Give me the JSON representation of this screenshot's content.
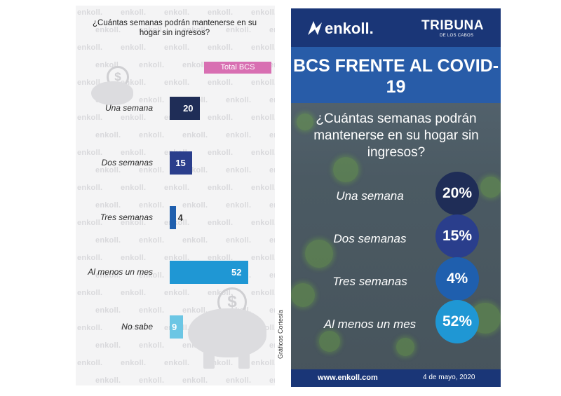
{
  "left": {
    "question": "¿Cuántas semanas podrán mantenerse en su hogar sin ingresos?",
    "badge": "Total BCS",
    "watermark": "enkoll.",
    "credit": "Gráficos Cortesía"
  },
  "right": {
    "brand": "enkoll.",
    "partner": "TRIBUNA",
    "partner_sub": "DE LOS CABOS",
    "title": "BCS FRENTE AL COVID-19",
    "question": "¿Cuántas semanas podrán mantenerse en su hogar sin ingresos?",
    "items": [
      {
        "label": "Una semana",
        "value": "20%",
        "color": "#1f2d57"
      },
      {
        "label": "Dos semanas",
        "value": "15%",
        "color": "#2a3e8c"
      },
      {
        "label": "Tres semanas",
        "value": "4%",
        "color": "#1f5fae"
      },
      {
        "label": "Al menos un mes",
        "value": "52%",
        "color": "#1f97d4"
      }
    ],
    "url": "www.enkoll.com",
    "date": "4 de mayo, 2020"
  },
  "chart_data": {
    "type": "bar",
    "orientation": "horizontal",
    "title": "¿Cuántas semanas podrán mantenerse en su hogar sin ingresos?",
    "series": [
      {
        "name": "Total BCS",
        "values": [
          20,
          15,
          4,
          52,
          9
        ]
      }
    ],
    "categories": [
      "Una semana",
      "Dos semanas",
      "Tres semanas",
      "Al menos un mes",
      "No sabe"
    ],
    "value_labels": [
      "20",
      "15",
      "4",
      "52",
      "9"
    ],
    "colors": [
      "#1f2d57",
      "#2a3e8c",
      "#1f5fae",
      "#1f97d4",
      "#6cc6e4"
    ],
    "xlim": [
      0,
      52
    ],
    "legend": "top-right",
    "grid": false
  }
}
